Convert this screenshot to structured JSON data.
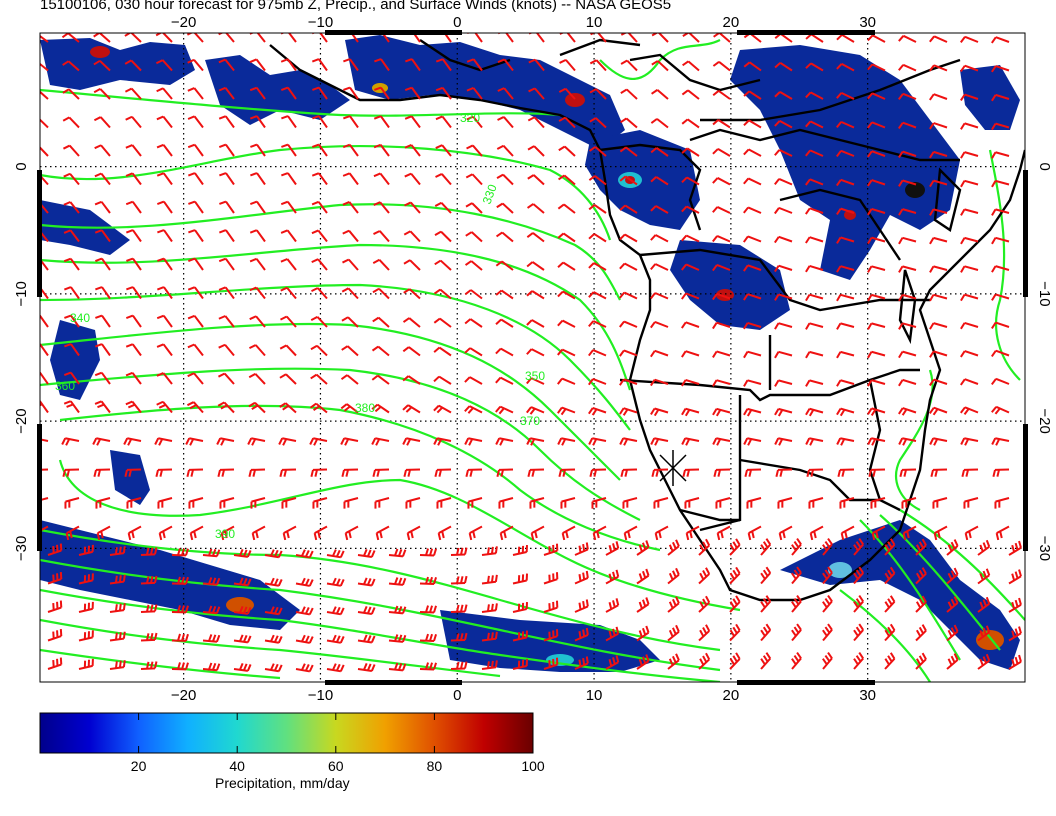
{
  "title": "15100106, 030 hour forecast for 975mb Z, Precip., and Surface Winds (knots) -- NASA GEOS5",
  "map": {
    "lon_range": [
      -30.5,
      41.5
    ],
    "lat_range": [
      -40.5,
      10.5
    ],
    "lon_ticks": [
      -20,
      -10,
      0,
      10,
      20,
      30
    ],
    "lat_ticks": [
      0,
      -10,
      -20,
      -30
    ],
    "lon_tick_labels": [
      "−20",
      "−10",
      "0",
      "10",
      "20",
      "30"
    ],
    "lat_tick_labels": [
      "0",
      "−10",
      "−20",
      "−30"
    ],
    "grid": true,
    "contour_labels": [
      "320",
      "330",
      "340",
      "350",
      "360",
      "370",
      "380",
      "390"
    ],
    "colors": {
      "contour": "#22ee22",
      "wind_barb": "#ee1111",
      "coastline": "#000000",
      "precip_low": "#0a2a9a",
      "precip_high": "#a01010"
    }
  },
  "colorbar": {
    "label": "Precipitation, mm/day",
    "ticks": [
      "20",
      "40",
      "60",
      "80",
      "100"
    ],
    "range": [
      0,
      100
    ],
    "colors": [
      "#00008b",
      "#0000d0",
      "#1060ff",
      "#10b0ff",
      "#20d8d0",
      "#60e080",
      "#c8d820",
      "#f0a000",
      "#e05000",
      "#c00000",
      "#6a0000"
    ]
  }
}
